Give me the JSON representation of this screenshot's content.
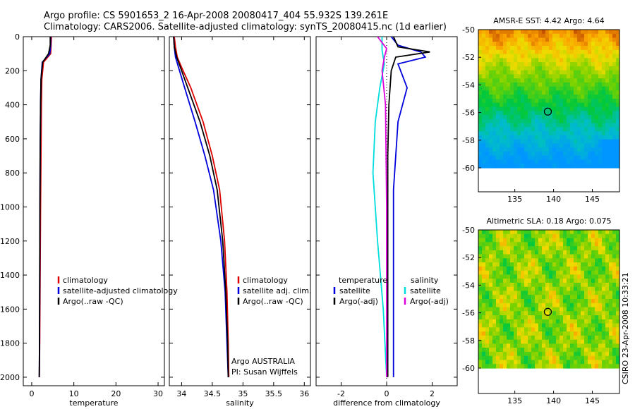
{
  "header": {
    "line1": "Argo profile: CS 5901653_2 16-Apr-2008 20080417_404 55.932S 139.261E",
    "line2": "Climatology: CARS2006. Satellite-adjusted climatology: synTS_20080415.nc (1d earlier)"
  },
  "side_label": "CSIRO 23-Apr-2008 10:33:21",
  "chart_data": [
    {
      "id": "temperature",
      "type": "line",
      "xlabel": "temperature",
      "ylabel": "",
      "xlim": [
        -2,
        31.5
      ],
      "ylim": [
        2050,
        0
      ],
      "xticks": [
        0,
        10,
        20,
        30
      ],
      "yticks": [
        0,
        200,
        400,
        600,
        800,
        1000,
        1200,
        1400,
        1600,
        1800,
        2000
      ],
      "legend": [
        "climatology",
        "satellite-adjusted climatology",
        "Argo(..raw -QC)"
      ],
      "series": [
        {
          "name": "climatology",
          "color": "#dd0000",
          "x": [
            4.7,
            4.6,
            4.5,
            2.8,
            2.4,
            2.3,
            2.2,
            2.1,
            2.0,
            1.9,
            1.8
          ],
          "y": [
            0,
            50,
            100,
            150,
            250,
            400,
            700,
            1000,
            1400,
            1800,
            2000
          ]
        },
        {
          "name": "satellite-adjusted climatology",
          "color": "#0000dd",
          "x": [
            4.5,
            4.5,
            4.3,
            2.5,
            2.2,
            2.1,
            2.0,
            1.95,
            1.9,
            1.85,
            1.8
          ],
          "y": [
            0,
            50,
            100,
            150,
            250,
            400,
            700,
            1000,
            1400,
            1800,
            2000
          ]
        },
        {
          "name": "Argo(..raw -QC)",
          "color": "#000000",
          "x": [
            4.4,
            4.4,
            4.0,
            2.6,
            2.2,
            2.1,
            2.0,
            1.95,
            1.9,
            1.85,
            1.8
          ],
          "y": [
            0,
            50,
            100,
            150,
            250,
            400,
            700,
            1000,
            1400,
            1800,
            2000
          ]
        }
      ]
    },
    {
      "id": "salinity",
      "type": "line",
      "xlabel": "salinity",
      "ylabel": "",
      "xlim": [
        33.8,
        36.1
      ],
      "ylim": [
        2050,
        0
      ],
      "xticks": [
        34,
        34.5,
        35,
        35.5,
        36
      ],
      "legend": [
        "climatology",
        "satellite adj. clim.",
        "Argo(..raw -QC)"
      ],
      "annotation": [
        "Argo AUSTRALIA",
        "PI: Susan Wijffels"
      ],
      "series": [
        {
          "name": "climatology",
          "color": "#dd0000",
          "x": [
            33.88,
            33.9,
            33.93,
            34.0,
            34.15,
            34.35,
            34.5,
            34.62,
            34.7,
            34.74,
            34.76,
            34.77
          ],
          "y": [
            0,
            60,
            120,
            180,
            300,
            500,
            700,
            900,
            1200,
            1500,
            1800,
            2000
          ]
        },
        {
          "name": "satellite adj. clim.",
          "color": "#0000dd",
          "x": [
            33.87,
            33.88,
            33.9,
            33.95,
            34.05,
            34.22,
            34.38,
            34.52,
            34.64,
            34.71,
            34.74,
            34.76
          ],
          "y": [
            0,
            60,
            120,
            180,
            300,
            500,
            700,
            900,
            1200,
            1500,
            1800,
            2000
          ]
        },
        {
          "name": "Argo(..raw -QC)",
          "color": "#000000",
          "x": [
            33.87,
            33.88,
            33.92,
            33.98,
            34.1,
            34.3,
            34.46,
            34.58,
            34.67,
            34.72,
            34.75,
            34.76
          ],
          "y": [
            0,
            60,
            120,
            180,
            300,
            500,
            700,
            900,
            1200,
            1500,
            1800,
            2000
          ]
        }
      ]
    },
    {
      "id": "difference",
      "type": "line",
      "xlabel": "difference from climatology",
      "ylabel": "",
      "xlim": [
        -3.1,
        3.1
      ],
      "ylim": [
        2050,
        0
      ],
      "xticks": [
        -2,
        0,
        2
      ],
      "legend_titles": [
        "temperature",
        "salinity"
      ],
      "legend": [
        "satellite",
        "Argo(-adj)",
        "satellite",
        "Argo(-adj)"
      ],
      "series": [
        {
          "name": "temperature satellite",
          "color": "#0000dd",
          "x": [
            0.2,
            0.5,
            1.5,
            1.7,
            0.5,
            0.9,
            0.5,
            0.3,
            0.3,
            0.3
          ],
          "y": [
            0,
            50,
            90,
            120,
            160,
            300,
            500,
            900,
            1500,
            2000
          ]
        },
        {
          "name": "temperature Argo(-adj)",
          "color": "#000000",
          "x": [
            0.3,
            0.5,
            1.9,
            0.4,
            0.2,
            0.1,
            0.05,
            0.05,
            0.05,
            0.05
          ],
          "y": [
            0,
            60,
            90,
            120,
            200,
            400,
            700,
            1000,
            1500,
            2000
          ]
        },
        {
          "name": "salinity satellite",
          "color": "#00dddd",
          "x": [
            -0.2,
            -0.2,
            -0.1,
            -0.3,
            -0.5,
            -0.6,
            -0.4,
            -0.15,
            0.0
          ],
          "y": [
            0,
            80,
            160,
            300,
            500,
            800,
            1200,
            1600,
            2000
          ]
        },
        {
          "name": "salinity Argo(-adj)",
          "color": "#dd00dd",
          "x": [
            -0.4,
            0.0,
            -0.1,
            -0.2,
            -0.05,
            0.0,
            0.0
          ],
          "y": [
            0,
            70,
            120,
            200,
            400,
            1000,
            2000
          ]
        }
      ]
    },
    {
      "id": "amsr-sst-map",
      "type": "heatmap",
      "title": "AMSR-E SST: 4.42  Argo: 4.64",
      "xlim": [
        130.3,
        148.5
      ],
      "ylim": [
        -60,
        -50
      ],
      "xticks": [
        135,
        140,
        145
      ],
      "yticks": [
        -50,
        -52,
        -54,
        -56,
        -58,
        -60
      ],
      "marker": {
        "lon": 139.26,
        "lat": -55.93
      }
    },
    {
      "id": "altimetric-sla-map",
      "type": "heatmap",
      "title": "Altimetric SLA: 0.18  Argo: 0.075",
      "xlim": [
        130.3,
        148.5
      ],
      "ylim": [
        -60,
        -50
      ],
      "xticks": [
        135,
        140,
        145
      ],
      "yticks": [
        -50,
        -52,
        -54,
        -56,
        -58,
        -60
      ],
      "marker": {
        "lon": 139.26,
        "lat": -55.93
      }
    }
  ]
}
